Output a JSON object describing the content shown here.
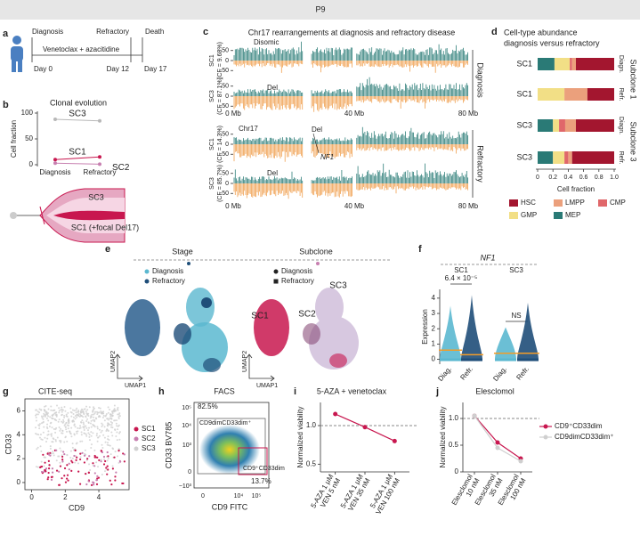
{
  "header": {
    "title": "P9"
  },
  "panels": {
    "a": {
      "letter": "a",
      "events": [
        "Diagnosis",
        "Refractory",
        "Death"
      ],
      "treatment": "Venetoclax + azacitidine",
      "days": [
        "Day 0",
        "Day 12",
        "Day 17"
      ]
    },
    "b": {
      "letter": "b",
      "title": "Clonal evolution",
      "ylabel": "Cell fraction",
      "ylim": [
        0,
        100
      ],
      "yticks": [
        0,
        50,
        100
      ],
      "categories": [
        "Diagnosis",
        "Refractory"
      ],
      "series": [
        {
          "name": "SC3",
          "color": "#b8b8b8",
          "values": [
            88,
            85
          ]
        },
        {
          "name": "SC1",
          "color": "#c8174f",
          "values": [
            10,
            15
          ]
        },
        {
          "name": "SC2",
          "color": "#c77fb0",
          "values": [
            3,
            1
          ]
        }
      ],
      "fish_labels": [
        "SC3",
        "SC1 (+focal Del17)"
      ]
    },
    "c": {
      "letter": "c",
      "title": "Chr17 rearrangements at diagnosis and refractory disease",
      "ylim": [
        -80,
        80
      ],
      "yticks": [
        -50,
        0,
        50
      ],
      "tracks": [
        {
          "label": "SC1",
          "sublabel": "(CF = 9.68%)"
        },
        {
          "label": "SC3",
          "sublabel": "(CF = 87.1%)"
        },
        {
          "label": "SC1",
          "sublabel": "(CF = 14.3%)"
        },
        {
          "label": "SC3",
          "sublabel": "(CF = 85.7%)"
        }
      ],
      "annotations": [
        "Disomic",
        "Del",
        "Chr17",
        "Del",
        "Del"
      ],
      "gene": "NF1",
      "xticks": [
        "0 Mb",
        "40 Mb",
        "80 Mb"
      ],
      "groups": [
        "Diagnosis",
        "Refractory"
      ]
    },
    "d": {
      "letter": "d",
      "title": [
        "Cell-type abundance",
        "diagnosis versus refractory"
      ],
      "rows": [
        {
          "clone": "SC1",
          "stage": "Diagn."
        },
        {
          "clone": "SC1",
          "stage": "Refr."
        },
        {
          "clone": "SC3",
          "stage": "Diagn."
        },
        {
          "clone": "SC3",
          "stage": "Refr."
        }
      ],
      "groups": [
        "Subclone 1",
        "Subclone 3"
      ],
      "xlabel": "Cell fraction",
      "xlim": [
        0,
        1
      ],
      "xticks": [
        0,
        0.2,
        0.4,
        0.6,
        0.8,
        {
          "value": 1,
          "label": "1.0"
        }
      ],
      "series": [
        {
          "name": "MEP",
          "color": "#2a7a76",
          "values": [
            0.22,
            0,
            0.2,
            0.2
          ]
        },
        {
          "name": "GMP",
          "color": "#f2df86",
          "values": [
            0.2,
            0.35,
            0.08,
            0.15
          ]
        },
        {
          "name": "CMP",
          "color": "#e0676a",
          "values": [
            0.03,
            0,
            0.08,
            0.05
          ]
        },
        {
          "name": "LMPP",
          "color": "#eba07c",
          "values": [
            0.05,
            0.3,
            0.14,
            0.05
          ]
        },
        {
          "name": "HSC",
          "color": "#a3162f",
          "values": [
            0.5,
            0.35,
            0.5,
            0.55
          ]
        }
      ]
    },
    "e": {
      "letter": "e",
      "titles": [
        "Stage",
        "Subclone"
      ],
      "stage_legend": [
        {
          "name": "Diagnosis",
          "color": "#5bb8d0"
        },
        {
          "name": "Refractory",
          "color": "#1f4e79"
        }
      ],
      "subclone_legend": [
        "Diagnosis",
        "Refractory"
      ],
      "clusters": [
        "SC1",
        "SC2",
        "SC3"
      ],
      "axes": [
        "UMAP1",
        "UMAP2"
      ]
    },
    "f": {
      "letter": "f",
      "gene": "NF1",
      "groups": [
        "SC1",
        "SC3"
      ],
      "tests": [
        "6.4 × 10⁻⁵",
        "NS"
      ],
      "ylabel": "Expression",
      "ylim": [
        -0.2,
        4.4
      ],
      "yticks": [
        0,
        1,
        2,
        3,
        4
      ],
      "categories": [
        "Diag.",
        "Refr.",
        "Diag.",
        "Refr."
      ],
      "colors": [
        "#5bb8d0",
        "#1f4e79",
        "#5bb8d0",
        "#1f4e79"
      ],
      "medians": [
        0.6,
        0.3,
        0.4,
        0.4
      ]
    },
    "g": {
      "letter": "g",
      "title": "CITE-seq",
      "xlabel": "CD9",
      "ylabel": "CD33",
      "xlim": [
        -0.4,
        5.8
      ],
      "xticks": [
        0,
        2,
        4
      ],
      "ylim": [
        -0.6,
        7
      ],
      "yticks": [
        0,
        2,
        4,
        6
      ],
      "legend": [
        {
          "name": "SC1",
          "color": "#c8174f"
        },
        {
          "name": "SC2",
          "color": "#c77fb0"
        },
        {
          "name": "SC3",
          "color": "#d0d0d0"
        }
      ]
    },
    "h": {
      "letter": "h",
      "title": "FACS",
      "xlabel": "CD9 FITC",
      "ylabel": "CD33 BV785",
      "xticks": [
        "0",
        "10⁴",
        "10⁵"
      ],
      "yticks": [
        "10⁵",
        "10⁴",
        "10³",
        "0",
        "−10³"
      ],
      "gates": [
        {
          "name": "CD9dimCD33dim⁺",
          "percent": "82.5%"
        },
        {
          "name": "CD9⁺CD33dim",
          "percent": "13.7%"
        }
      ]
    },
    "i": {
      "letter": "i",
      "title": "5-AZA + venetoclax",
      "ylabel": "Normalized viability",
      "ylim": [
        0.4,
        1.3
      ],
      "yticks": [
        0.5,
        {
          "value": 1,
          "label": "1.0"
        }
      ],
      "reference_line": 1,
      "categories": [
        [
          "5-AZA 1 μM",
          "VEN 5 nM"
        ],
        [
          "5-AZA 1 μM",
          "VEN 35 nM"
        ],
        [
          "5-AZA 1 μM",
          "VEN 100 nM"
        ]
      ],
      "series": [
        {
          "color": "#c8174f",
          "values": [
            1.15,
            0.98,
            0.8
          ]
        }
      ]
    },
    "j": {
      "letter": "j",
      "title": "Elesclomol",
      "ylabel": "Normalized viability",
      "ylim": [
        0,
        1.3
      ],
      "yticks": [
        0,
        0.5,
        {
          "value": 1,
          "label": "1.0"
        }
      ],
      "reference_line": 1,
      "categories": [
        [
          "Elesclomol",
          "10 nM"
        ],
        [
          "Elesclomol",
          "35 nM"
        ],
        [
          "Elesclomol",
          "100 nM"
        ]
      ],
      "series": [
        {
          "name": "CD9⁺CD33dim",
          "color": "#c8174f",
          "values": [
            1.05,
            0.55,
            0.25
          ]
        },
        {
          "name": "CD9dimCD33dim⁺",
          "color": "#cfcfcf",
          "values": [
            1.05,
            0.45,
            0.2
          ]
        }
      ]
    }
  }
}
